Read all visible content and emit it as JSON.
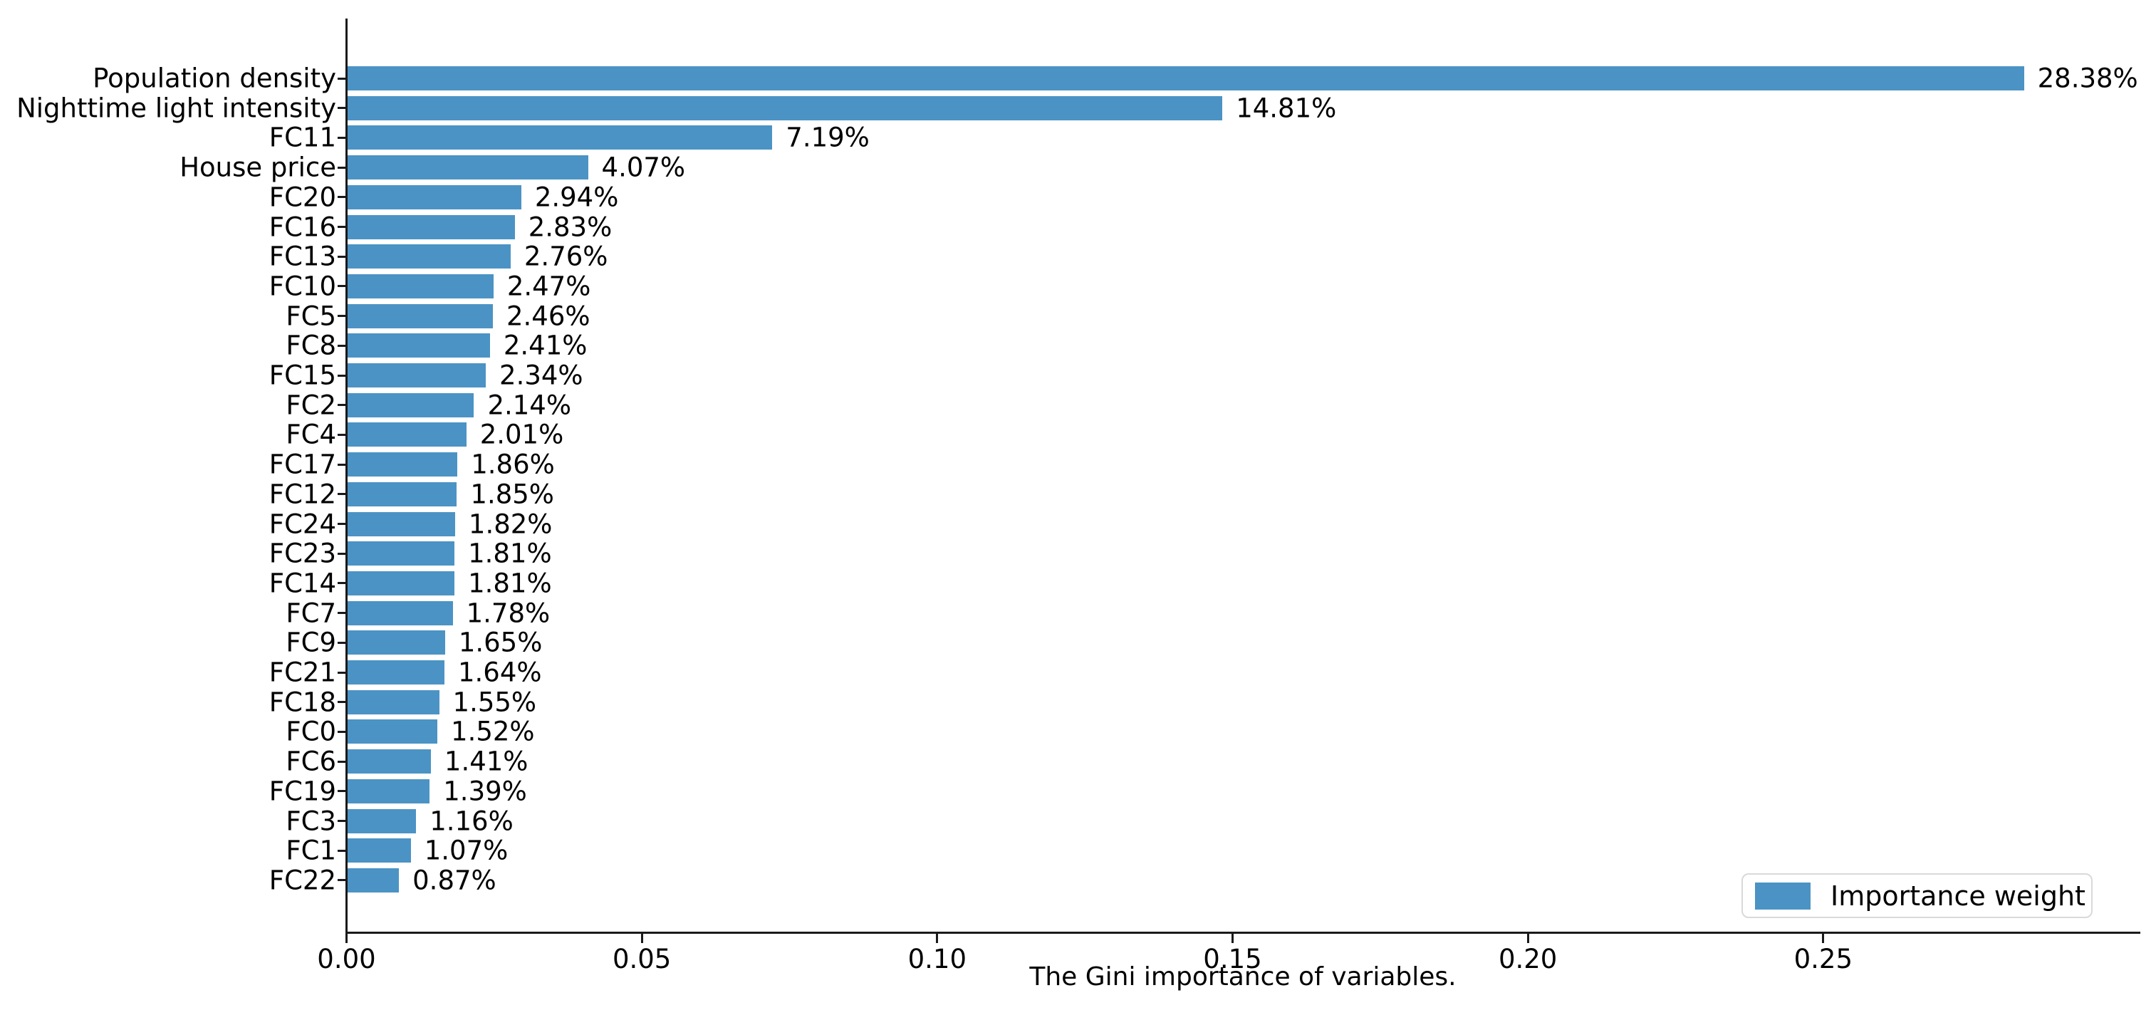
{
  "chart_data": {
    "type": "bar",
    "orientation": "horizontal",
    "title": "",
    "xlabel": "The Gini importance of variables.",
    "ylabel": "",
    "categories": [
      "Population density",
      "Nighttime light intensity",
      "FC11",
      "House price",
      "FC20",
      "FC16",
      "FC13",
      "FC10",
      "FC5",
      "FC8",
      "FC15",
      "FC2",
      "FC4",
      "FC17",
      "FC12",
      "FC24",
      "FC23",
      "FC14",
      "FC7",
      "FC9",
      "FC21",
      "FC18",
      "FC0",
      "FC6",
      "FC19",
      "FC3",
      "FC1",
      "FC22"
    ],
    "values": [
      0.2838,
      0.1481,
      0.0719,
      0.0407,
      0.0294,
      0.0283,
      0.0276,
      0.0247,
      0.0246,
      0.0241,
      0.0234,
      0.0214,
      0.0201,
      0.0186,
      0.0185,
      0.0182,
      0.0181,
      0.0181,
      0.0178,
      0.0165,
      0.0164,
      0.0155,
      0.0152,
      0.0141,
      0.0139,
      0.0116,
      0.0107,
      0.0087
    ],
    "percent_labels": [
      "28.38%",
      "14.81%",
      "7.19%",
      "4.07%",
      "2.94%",
      "2.83%",
      "2.76%",
      "2.47%",
      "2.46%",
      "2.41%",
      "2.34%",
      "2.14%",
      "2.01%",
      "1.86%",
      "1.85%",
      "1.82%",
      "1.81%",
      "1.81%",
      "1.78%",
      "1.65%",
      "1.64%",
      "1.55%",
      "1.52%",
      "1.41%",
      "1.39%",
      "1.16%",
      "1.07%",
      "0.87%"
    ],
    "xlim": [
      0,
      0.3035
    ],
    "xticks": [
      0.0,
      0.05,
      0.1,
      0.15,
      0.2,
      0.25
    ],
    "xtick_labels": [
      "0.00",
      "0.05",
      "0.10",
      "0.15",
      "0.20",
      "0.25"
    ],
    "grid": false,
    "legend": {
      "label": "Importance weight",
      "position": "lower right"
    }
  },
  "colors": {
    "bar": "#4b93c4",
    "axis": "#1a1a1a",
    "text": "#000000",
    "legend_border": "#d9d9d9",
    "background": "#ffffff"
  }
}
